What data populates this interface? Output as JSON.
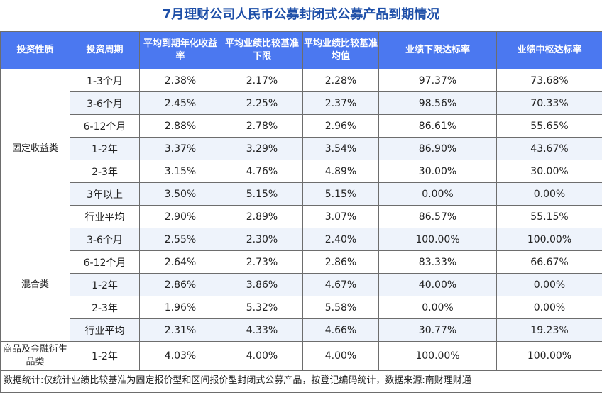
{
  "title": "7月理财公司人民币公募封闭式公募产品到期情况",
  "headers": [
    "投资性质",
    "投资周期",
    "平均到期年化收益率",
    "平均业绩比较基准下限",
    "平均业绩比较基准均值",
    "业绩下限达标率",
    "业绩中枢达标率"
  ],
  "groups": [
    {
      "name": "固定收益类",
      "rows": [
        [
          "1-3个月",
          "2.38%",
          "2.17%",
          "2.28%",
          "97.37%",
          "73.68%"
        ],
        [
          "3-6个月",
          "2.45%",
          "2.25%",
          "2.37%",
          "98.56%",
          "70.33%"
        ],
        [
          "6-12个月",
          "2.88%",
          "2.78%",
          "2.96%",
          "86.61%",
          "55.65%"
        ],
        [
          "1-2年",
          "3.37%",
          "3.29%",
          "3.54%",
          "86.90%",
          "43.67%"
        ],
        [
          "2-3年",
          "3.15%",
          "4.76%",
          "4.89%",
          "30.00%",
          "30.00%"
        ],
        [
          "3年以上",
          "3.50%",
          "5.15%",
          "5.15%",
          "0.00%",
          "0.00%"
        ],
        [
          "行业平均",
          "2.90%",
          "2.89%",
          "3.07%",
          "86.57%",
          "55.15%"
        ]
      ]
    },
    {
      "name": "混合类",
      "rows": [
        [
          "3-6个月",
          "2.55%",
          "2.30%",
          "2.40%",
          "100.00%",
          "100.00%"
        ],
        [
          "6-12个月",
          "2.64%",
          "2.73%",
          "2.86%",
          "83.33%",
          "66.67%"
        ],
        [
          "1-2年",
          "2.86%",
          "3.86%",
          "4.67%",
          "40.00%",
          "0.00%"
        ],
        [
          "2-3年",
          "1.96%",
          "5.32%",
          "5.58%",
          "0.00%",
          "0.00%"
        ],
        [
          "行业平均",
          "2.31%",
          "4.33%",
          "4.66%",
          "30.77%",
          "19.23%"
        ]
      ]
    },
    {
      "name": "商品及金融衍生品类",
      "rows": [
        [
          "1-2年",
          "4.03%",
          "4.00%",
          "4.00%",
          "100.00%",
          "100.00%"
        ]
      ]
    }
  ],
  "footnote": "数据统计:仅统计业绩比较基准为固定报价型和区间报价型封闭式公募产品，按登记编码统计，数据来源:南财理财通"
}
